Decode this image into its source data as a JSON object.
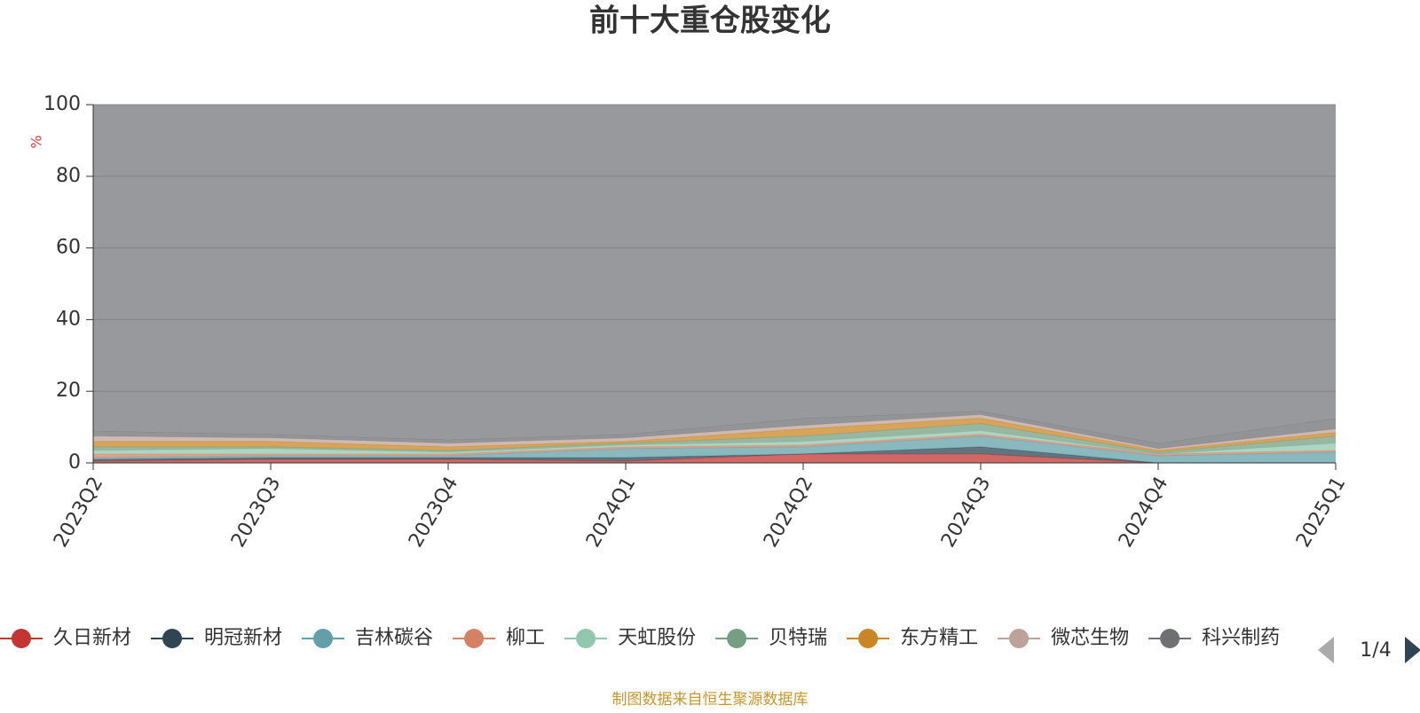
{
  "chart_data": {
    "type": "area",
    "stacked": true,
    "title": "前十大重仓股变化",
    "y_label": "%",
    "categories": [
      "2023Q2",
      "2023Q3",
      "2023Q4",
      "2024Q1",
      "2024Q2",
      "2024Q3",
      "2024Q4",
      "2025Q1"
    ],
    "ylim": [
      0,
      100
    ],
    "yticks": [
      0,
      20,
      40,
      60,
      80,
      100
    ],
    "grid": true,
    "series": [
      {
        "name": "久日新材",
        "color": "#c23531",
        "values": [
          0.5,
          1,
          1,
          0.5,
          2.5,
          2.5,
          0,
          0
        ]
      },
      {
        "name": "明冠新材",
        "color": "#2f4554",
        "values": [
          0.5,
          0.5,
          0.5,
          1,
          0,
          2,
          0,
          0
        ]
      },
      {
        "name": "吉林碳谷",
        "color": "#61a0a8",
        "values": [
          0.5,
          0.5,
          0.5,
          2.5,
          2,
          3,
          2,
          3
        ]
      },
      {
        "name": "柳工",
        "color": "#d48265",
        "values": [
          1,
          0.5,
          0.5,
          0.5,
          0.5,
          0.5,
          0.5,
          0.5
        ]
      },
      {
        "name": "天虹股份",
        "color": "#91c7ae",
        "values": [
          1,
          1.5,
          0.5,
          0.5,
          1,
          1,
          0,
          2
        ]
      },
      {
        "name": "贝特瑞",
        "color": "#749f83",
        "values": [
          1,
          0.5,
          0.5,
          0.5,
          1.5,
          2,
          0.5,
          2
        ]
      },
      {
        "name": "东方精工",
        "color": "#ca8622",
        "values": [
          1.5,
          1.5,
          1,
          0.5,
          2,
          1.5,
          0.5,
          1
        ]
      },
      {
        "name": "微芯生物",
        "color": "#bda29a",
        "values": [
          1.5,
          1,
          1,
          1,
          1,
          1,
          0.5,
          1
        ]
      },
      {
        "name": "科兴制药",
        "color": "#6e7074",
        "values": [
          1.5,
          1,
          1,
          1,
          2,
          1,
          1.5,
          3
        ]
      },
      {
        "color": "#98999d",
        "values": [
          91,
          92,
          93.5,
          92,
          87.5,
          85.5,
          94.5,
          87.5
        ]
      }
    ],
    "legend_page": "1/4",
    "source": "制图数据来自恒生聚源数据库"
  }
}
